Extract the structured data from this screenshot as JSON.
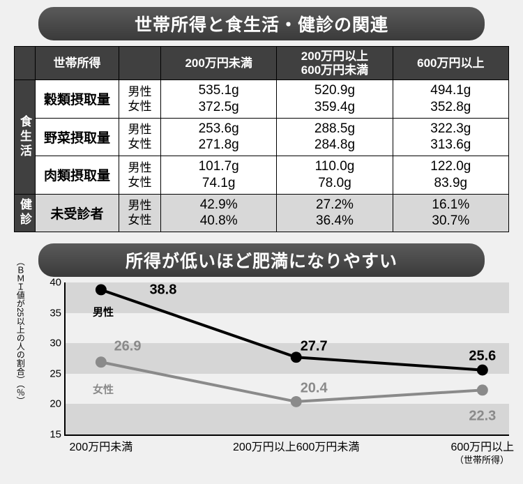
{
  "section1": {
    "title": "世帯所得と食生活・健診の関連",
    "header": {
      "c1": "世帯所得",
      "c2": "",
      "c3": "200万円未満",
      "c4": "200万円以上\n600万円未満",
      "c5": "600万円以上"
    },
    "vcat1": "食生活",
    "vcat2": "健診",
    "gender_m": "男性",
    "gender_f": "女性",
    "rows": [
      {
        "label": "穀類摂取量",
        "m": [
          "535.1g",
          "520.9g",
          "494.1g"
        ],
        "f": [
          "372.5g",
          "359.4g",
          "352.8g"
        ]
      },
      {
        "label": "野菜摂取量",
        "m": [
          "253.6g",
          "288.5g",
          "322.3g"
        ],
        "f": [
          "271.8g",
          "284.8g",
          "313.6g"
        ]
      },
      {
        "label": "肉類摂取量",
        "m": [
          "101.7g",
          "110.0g",
          "122.0g"
        ],
        "f": [
          "74.1g",
          "78.0g",
          "83.9g"
        ]
      }
    ],
    "row2": {
      "label": "未受診者",
      "m": [
        "42.9%",
        "27.2%",
        "16.1%"
      ],
      "f": [
        "40.8%",
        "36.4%",
        "30.7%"
      ]
    }
  },
  "section2": {
    "title": "所得が低いほど肥満になりやすい",
    "yaxis_label": "（ＢＭＩ値が25以上の人の割合）（％）",
    "xaxis_caption": "（世帯所得）",
    "ylim": [
      15,
      40
    ],
    "yticks": [
      15,
      20,
      25,
      30,
      35,
      40
    ],
    "bands": [
      [
        15,
        20
      ],
      [
        25,
        30
      ],
      [
        35,
        40
      ]
    ],
    "band_color": "#d6d6d6",
    "bg_color": "#ffffff",
    "categories": [
      "200万円未満",
      "200万円以上600万円未満",
      "600万円以上"
    ],
    "xpos_pct": [
      8,
      52,
      94
    ],
    "series": [
      {
        "name": "男性",
        "values": [
          38.8,
          27.7,
          25.6
        ],
        "color": "#000000",
        "line_width": 4,
        "marker_radius": 8,
        "label_positions": [
          [
            22,
            38.8
          ],
          [
            56,
            29.5
          ],
          [
            94,
            27.8
          ]
        ],
        "series_label_pos": [
          8.5,
          35.2
        ]
      },
      {
        "name": "女性",
        "values": [
          26.9,
          20.4,
          22.3
        ],
        "color": "#8a8a8a",
        "line_width": 4,
        "marker_radius": 8,
        "label_positions": [
          [
            14,
            29.5
          ],
          [
            56,
            22.6
          ],
          [
            94,
            18.0
          ]
        ],
        "series_label_pos": [
          8.5,
          22.5
        ]
      }
    ]
  }
}
